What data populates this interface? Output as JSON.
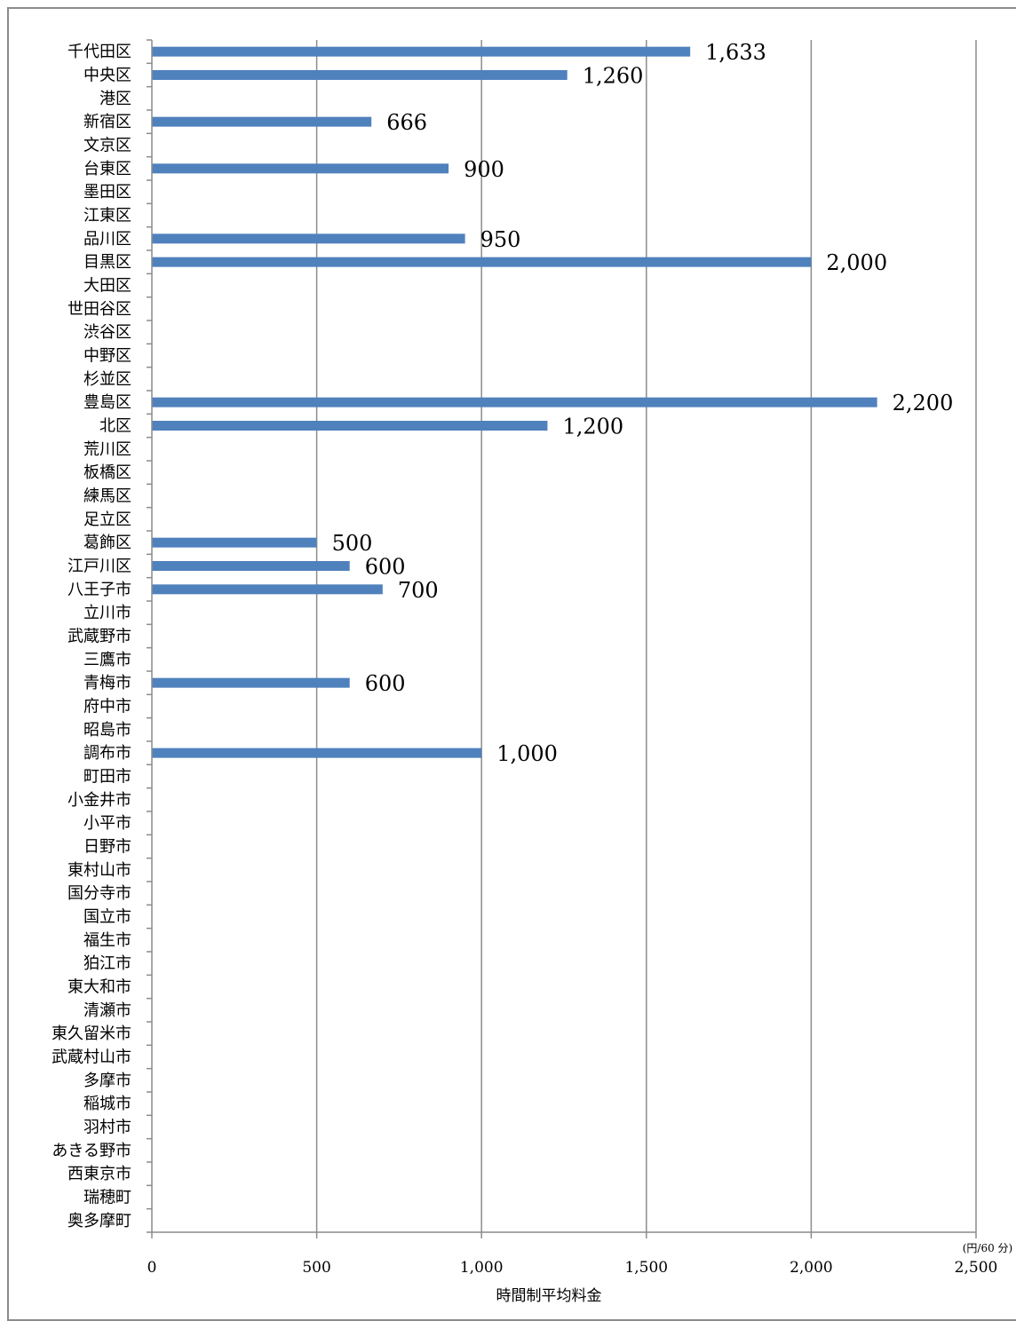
{
  "chart_data": {
    "type": "bar",
    "orientation": "horizontal",
    "title": "",
    "xlabel": "時間制平均料金",
    "unit": "(円/60 分)",
    "ylabel": "",
    "xlim": [
      0,
      2500
    ],
    "x_ticks": [
      "0",
      "500",
      "1,000",
      "1,500",
      "2,000",
      "2,500"
    ],
    "grid": "vertical major gridlines",
    "legend": "none",
    "bar_color": "#4f81bd",
    "categories": [
      "千代田区",
      "中央区",
      "港区",
      "新宿区",
      "文京区",
      "台東区",
      "墨田区",
      "江東区",
      "品川区",
      "目黒区",
      "大田区",
      "世田谷区",
      "渋谷区",
      "中野区",
      "杉並区",
      "豊島区",
      "北区",
      "荒川区",
      "板橋区",
      "練馬区",
      "足立区",
      "葛飾区",
      "江戸川区",
      "八王子市",
      "立川市",
      "武蔵野市",
      "三鷹市",
      "青梅市",
      "府中市",
      "昭島市",
      "調布市",
      "町田市",
      "小金井市",
      "小平市",
      "日野市",
      "東村山市",
      "国分寺市",
      "国立市",
      "福生市",
      "狛江市",
      "東大和市",
      "清瀬市",
      "東久留米市",
      "武蔵村山市",
      "多摩市",
      "稲城市",
      "羽村市",
      "あきる野市",
      "西東京市",
      "瑞穂町",
      "奥多摩町"
    ],
    "values": [
      1633,
      1260,
      null,
      666,
      null,
      900,
      null,
      null,
      950,
      2000,
      null,
      null,
      null,
      null,
      null,
      2200,
      1200,
      null,
      null,
      null,
      null,
      500,
      600,
      700,
      null,
      null,
      null,
      600,
      null,
      null,
      1000,
      null,
      null,
      null,
      null,
      null,
      null,
      null,
      null,
      null,
      null,
      null,
      null,
      null,
      null,
      null,
      null,
      null,
      null,
      null,
      null
    ],
    "data_labels": [
      "1,633",
      "1,260",
      "",
      "666",
      "",
      "900",
      "",
      "",
      "950",
      "2,000",
      "",
      "",
      "",
      "",
      "",
      "2,200",
      "1,200",
      "",
      "",
      "",
      "",
      "500",
      "600",
      "700",
      "",
      "",
      "",
      "600",
      "",
      "",
      "1,000",
      "",
      "",
      "",
      "",
      "",
      "",
      "",
      "",
      "",
      "",
      "",
      "",
      "",
      "",
      "",
      "",
      "",
      "",
      "",
      ""
    ]
  }
}
